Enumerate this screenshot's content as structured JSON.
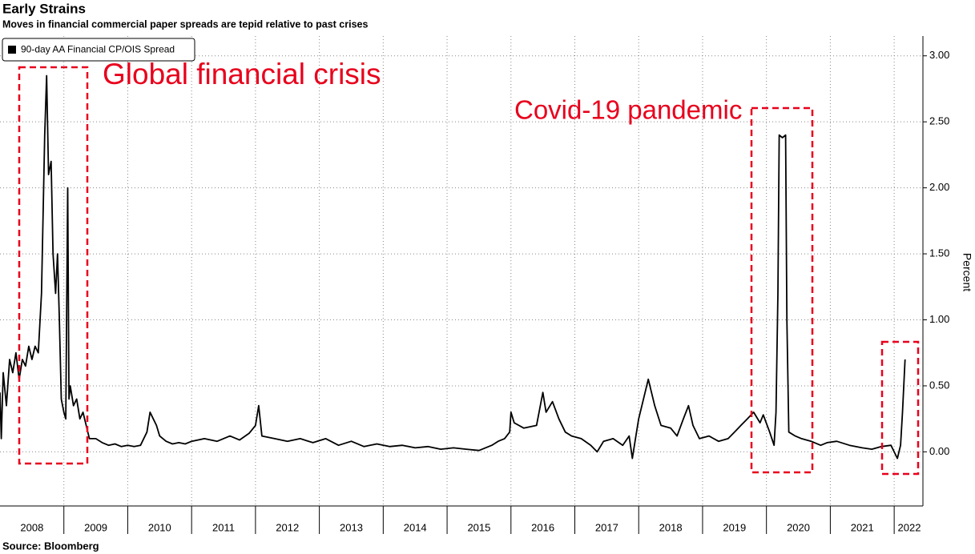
{
  "chart_data": {
    "type": "line",
    "title": "Early Strains",
    "subtitle": "Moves in financial commercial paper spreads are tepid relative to past crises",
    "source": "Source: Bloomberg",
    "y_label": "Percent",
    "annotations": [
      "Global financial crisis",
      "Covid-19 pandemic"
    ],
    "grid": true,
    "xlim": [
      2008,
      2022.45
    ],
    "ylim": [
      -0.41,
      3.15
    ],
    "xticks": [
      {
        "value": 2008.5,
        "label": "2008"
      },
      {
        "value": 2009.5,
        "label": "2009"
      },
      {
        "value": 2010.5,
        "label": "2010"
      },
      {
        "value": 2011.5,
        "label": "2011"
      },
      {
        "value": 2012.5,
        "label": "2012"
      },
      {
        "value": 2013.5,
        "label": "2013"
      },
      {
        "value": 2014.5,
        "label": "2014"
      },
      {
        "value": 2015.5,
        "label": "2015"
      },
      {
        "value": 2016.5,
        "label": "2016"
      },
      {
        "value": 2017.5,
        "label": "2017"
      },
      {
        "value": 2018.5,
        "label": "2018"
      },
      {
        "value": 2019.5,
        "label": "2019"
      },
      {
        "value": 2020.5,
        "label": "2020"
      },
      {
        "value": 2021.5,
        "label": "2021"
      },
      {
        "value": 2022.5,
        "label": "2022"
      }
    ],
    "yticks": [
      {
        "value": 0,
        "label": "0.00"
      },
      {
        "value": 0.5,
        "label": "0.50"
      },
      {
        "value": 1,
        "label": "1.00"
      },
      {
        "value": 1.5,
        "label": "1.50"
      },
      {
        "value": 2,
        "label": "2.00"
      },
      {
        "value": 2.5,
        "label": "2.50"
      },
      {
        "value": 3,
        "label": "3.00"
      }
    ],
    "series": [
      {
        "name": "90-day AA Financial CP/OIS Spread",
        "color": "#000000",
        "x": [
          2008.0,
          2008.02,
          2008.05,
          2008.1,
          2008.15,
          2008.2,
          2008.25,
          2008.3,
          2008.35,
          2008.4,
          2008.45,
          2008.5,
          2008.55,
          2008.6,
          2008.65,
          2008.7,
          2008.73,
          2008.76,
          2008.8,
          2008.83,
          2008.87,
          2008.9,
          2008.93,
          2008.96,
          2009.0,
          2009.03,
          2009.06,
          2009.08,
          2009.1,
          2009.15,
          2009.2,
          2009.25,
          2009.3,
          2009.35,
          2009.4,
          2009.5,
          2009.6,
          2009.7,
          2009.8,
          2009.9,
          2010.0,
          2010.1,
          2010.2,
          2010.3,
          2010.35,
          2010.4,
          2010.45,
          2010.5,
          2010.6,
          2010.7,
          2010.8,
          2010.9,
          2011.0,
          2011.2,
          2011.4,
          2011.6,
          2011.75,
          2011.9,
          2012.0,
          2012.05,
          2012.1,
          2012.3,
          2012.5,
          2012.7,
          2012.9,
          2013.1,
          2013.3,
          2013.5,
          2013.7,
          2013.9,
          2014.1,
          2014.3,
          2014.5,
          2014.7,
          2014.9,
          2015.1,
          2015.3,
          2015.5,
          2015.7,
          2015.8,
          2015.9,
          2015.98,
          2016.0,
          2016.05,
          2016.2,
          2016.4,
          2016.5,
          2016.55,
          2016.65,
          2016.75,
          2016.85,
          2016.95,
          2017.1,
          2017.25,
          2017.35,
          2017.45,
          2017.6,
          2017.75,
          2017.85,
          2017.9,
          2017.95,
          2018.0,
          2018.1,
          2018.15,
          2018.25,
          2018.35,
          2018.5,
          2018.6,
          2018.7,
          2018.78,
          2018.85,
          2018.95,
          2019.1,
          2019.25,
          2019.4,
          2019.5,
          2019.6,
          2019.7,
          2019.8,
          2019.9,
          2019.95,
          2020.05,
          2020.12,
          2020.15,
          2020.18,
          2020.2,
          2020.25,
          2020.3,
          2020.32,
          2020.35,
          2020.45,
          2020.55,
          2020.7,
          2020.85,
          2020.95,
          2021.1,
          2021.3,
          2021.5,
          2021.65,
          2021.8,
          2021.95,
          2022.0,
          2022.05,
          2022.1,
          2022.13,
          2022.17
        ],
        "values": [
          0.45,
          0.1,
          0.6,
          0.35,
          0.7,
          0.6,
          0.75,
          0.55,
          0.7,
          0.65,
          0.8,
          0.7,
          0.8,
          0.75,
          1.2,
          2.4,
          2.85,
          2.1,
          2.2,
          1.5,
          1.2,
          1.5,
          1.0,
          0.4,
          0.3,
          0.25,
          2.0,
          0.4,
          0.5,
          0.35,
          0.4,
          0.25,
          0.3,
          0.2,
          0.1,
          0.1,
          0.07,
          0.05,
          0.06,
          0.04,
          0.05,
          0.04,
          0.05,
          0.15,
          0.3,
          0.25,
          0.2,
          0.12,
          0.08,
          0.06,
          0.07,
          0.06,
          0.08,
          0.1,
          0.08,
          0.12,
          0.09,
          0.14,
          0.2,
          0.35,
          0.12,
          0.1,
          0.08,
          0.1,
          0.07,
          0.1,
          0.05,
          0.08,
          0.04,
          0.06,
          0.04,
          0.05,
          0.03,
          0.04,
          0.02,
          0.03,
          0.02,
          0.01,
          0.05,
          0.08,
          0.1,
          0.15,
          0.3,
          0.22,
          0.18,
          0.2,
          0.45,
          0.3,
          0.38,
          0.25,
          0.15,
          0.12,
          0.1,
          0.05,
          0.0,
          0.08,
          0.1,
          0.05,
          0.12,
          -0.05,
          0.1,
          0.25,
          0.45,
          0.55,
          0.35,
          0.2,
          0.18,
          0.12,
          0.25,
          0.35,
          0.2,
          0.1,
          0.12,
          0.08,
          0.1,
          0.15,
          0.2,
          0.25,
          0.3,
          0.22,
          0.28,
          0.15,
          0.05,
          0.3,
          1.2,
          2.4,
          2.38,
          2.4,
          1.0,
          0.15,
          0.12,
          0.1,
          0.08,
          0.05,
          0.07,
          0.08,
          0.05,
          0.03,
          0.02,
          0.04,
          0.05,
          0.0,
          -0.05,
          0.05,
          0.3,
          0.7
        ]
      }
    ]
  }
}
